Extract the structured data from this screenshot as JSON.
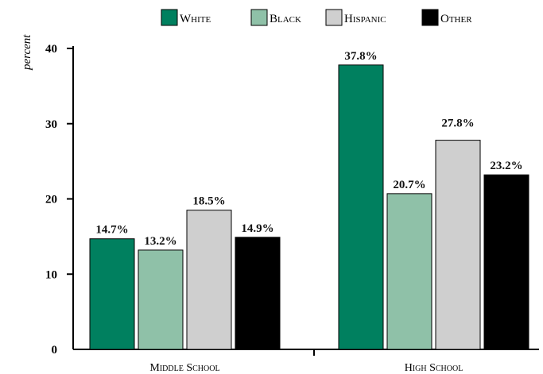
{
  "chart_data": {
    "type": "bar",
    "ylabel": "percent",
    "xlabel": "",
    "title": "",
    "categories": [
      "Middle School",
      "High School"
    ],
    "series": [
      {
        "name": "White",
        "color": "#00805f",
        "values": [
          14.7,
          37.8
        ],
        "labels": [
          "14.7%",
          "37.8%"
        ]
      },
      {
        "name": "Black",
        "color": "#8fc1a8",
        "values": [
          13.2,
          20.7
        ],
        "labels": [
          "13.2%",
          "20.7%"
        ]
      },
      {
        "name": "Hispanic",
        "color": "#cfcfcf",
        "values": [
          18.5,
          27.8
        ],
        "labels": [
          "18.5%",
          "27.8%"
        ]
      },
      {
        "name": "Other",
        "color": "#000000",
        "values": [
          14.9,
          23.2
        ],
        "labels": [
          "14.9%",
          "23.2%"
        ]
      }
    ],
    "ylim": [
      0,
      40
    ],
    "yticks": [
      0,
      10,
      20,
      30,
      40
    ],
    "grid": false,
    "legend_position": "top"
  }
}
